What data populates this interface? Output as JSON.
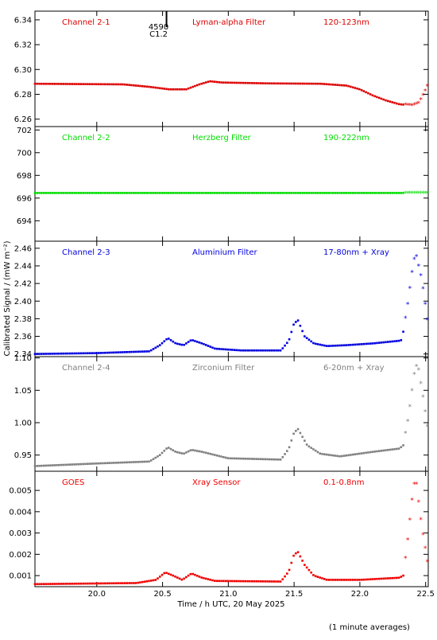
{
  "y_axis_label": "Calibrated Signal / (mW m⁻²)",
  "x_axis_label": "Time / h UTC, 20 May 2025",
  "footnote": "(1 minute averages)",
  "event_marker": {
    "x": 20.53,
    "top_label": "4590",
    "bottom_label": "C1.2"
  },
  "chart_data": [
    {
      "type": "scatter",
      "name": "Channel 2-1",
      "filter": "Lyman-alpha Filter",
      "band": "120-123nm",
      "color": "#dd0000",
      "xlim": [
        19.53,
        22.52
      ],
      "ylim": [
        6.254,
        6.347
      ],
      "yticks": [
        6.26,
        6.28,
        6.3,
        6.32,
        6.34
      ],
      "ytick_labels": [
        "6.26",
        "6.28",
        "6.30",
        "6.32",
        "6.34"
      ],
      "keypoints": [
        [
          19.53,
          6.2885
        ],
        [
          20.2,
          6.288
        ],
        [
          20.4,
          6.286
        ],
        [
          20.55,
          6.284
        ],
        [
          20.68,
          6.284
        ],
        [
          20.78,
          6.288
        ],
        [
          20.86,
          6.2905
        ],
        [
          20.95,
          6.2895
        ],
        [
          21.3,
          6.2888
        ],
        [
          21.7,
          6.2885
        ],
        [
          21.9,
          6.287
        ],
        [
          22.0,
          6.284
        ],
        [
          22.1,
          6.279
        ],
        [
          22.2,
          6.275
        ],
        [
          22.3,
          6.272
        ],
        [
          22.4,
          6.271
        ],
        [
          22.45,
          6.273
        ],
        [
          22.52,
          6.288
        ]
      ]
    },
    {
      "type": "scatter",
      "name": "Channel 2-2",
      "filter": "Herzberg Filter",
      "band": "190-222nm",
      "color": "#00dd00",
      "xlim": [
        19.53,
        22.52
      ],
      "ylim": [
        692.2,
        702.3
      ],
      "yticks": [
        694,
        696,
        698,
        700,
        702
      ],
      "ytick_labels": [
        "694",
        "696",
        "698",
        "700",
        "702"
      ],
      "keypoints": [
        [
          19.53,
          696.45
        ],
        [
          22.52,
          696.45
        ]
      ]
    },
    {
      "type": "scatter",
      "name": "Channel 2-3",
      "filter": "Aluminium Filter",
      "band": "17-80nm + Xray",
      "color": "#0000dd",
      "xlim": [
        19.53,
        22.52
      ],
      "ylim": [
        2.337,
        2.468
      ],
      "yticks": [
        2.34,
        2.36,
        2.38,
        2.4,
        2.42,
        2.44,
        2.46
      ],
      "ytick_labels": [
        "2.34",
        "2.36",
        "2.38",
        "2.40",
        "2.42",
        "2.44",
        "2.46"
      ],
      "keypoints": [
        [
          19.53,
          2.34
        ],
        [
          20.0,
          2.341
        ],
        [
          20.4,
          2.343
        ],
        [
          20.48,
          2.35
        ],
        [
          20.54,
          2.358
        ],
        [
          20.6,
          2.352
        ],
        [
          20.66,
          2.35
        ],
        [
          20.72,
          2.356
        ],
        [
          20.8,
          2.352
        ],
        [
          20.9,
          2.346
        ],
        [
          21.1,
          2.344
        ],
        [
          21.4,
          2.344
        ],
        [
          21.46,
          2.355
        ],
        [
          21.5,
          2.375
        ],
        [
          21.53,
          2.378
        ],
        [
          21.58,
          2.36
        ],
        [
          21.65,
          2.352
        ],
        [
          21.75,
          2.349
        ],
        [
          21.9,
          2.35
        ],
        [
          22.1,
          2.352
        ],
        [
          22.3,
          2.355
        ],
        [
          22.32,
          2.356
        ],
        [
          22.36,
          2.393
        ],
        [
          22.41,
          2.447
        ],
        [
          22.43,
          2.451
        ],
        [
          22.47,
          2.425
        ],
        [
          22.52,
          2.372
        ]
      ]
    },
    {
      "type": "scatter",
      "name": "Channel 2-4",
      "filter": "Zirconium Filter",
      "band": "6-20nm + Xray",
      "color": "#808080",
      "xlim": [
        19.53,
        22.52
      ],
      "ylim": [
        0.925,
        1.102
      ],
      "yticks": [
        0.95,
        1.0,
        1.05,
        1.1
      ],
      "ytick_labels": [
        "0.95",
        "1.00",
        "1.05",
        "1.10"
      ],
      "keypoints": [
        [
          19.53,
          0.933
        ],
        [
          20.0,
          0.937
        ],
        [
          20.4,
          0.94
        ],
        [
          20.48,
          0.95
        ],
        [
          20.54,
          0.962
        ],
        [
          20.6,
          0.955
        ],
        [
          20.66,
          0.952
        ],
        [
          20.72,
          0.958
        ],
        [
          20.8,
          0.955
        ],
        [
          21.0,
          0.945
        ],
        [
          21.4,
          0.943
        ],
        [
          21.46,
          0.96
        ],
        [
          21.5,
          0.985
        ],
        [
          21.53,
          0.99
        ],
        [
          21.6,
          0.965
        ],
        [
          21.7,
          0.952
        ],
        [
          21.85,
          0.948
        ],
        [
          22.1,
          0.955
        ],
        [
          22.3,
          0.96
        ],
        [
          22.33,
          0.965
        ],
        [
          22.37,
          1.01
        ],
        [
          22.42,
          1.085
        ],
        [
          22.44,
          1.09
        ],
        [
          22.48,
          1.04
        ],
        [
          22.52,
          0.985
        ]
      ]
    },
    {
      "type": "scatter",
      "name": "GOES",
      "filter": "Xray Sensor",
      "band": "0.1-0.8nm",
      "color": "#ee0000",
      "xlim": [
        19.53,
        22.52
      ],
      "ylim": [
        0.00048,
        0.0059
      ],
      "yticks": [
        0.001,
        0.002,
        0.003,
        0.004,
        0.005
      ],
      "ytick_labels": [
        "0.001",
        "0.002",
        "0.003",
        "0.004",
        "0.005"
      ],
      "xticks": [
        20.0,
        20.5,
        21.0,
        21.5,
        22.0,
        22.5
      ],
      "xtick_labels": [
        "20.0",
        "20.5",
        "21.0",
        "21.5",
        "22.0",
        "22.5"
      ],
      "keypoints": [
        [
          19.53,
          0.0006
        ],
        [
          20.3,
          0.00065
        ],
        [
          20.45,
          0.0008
        ],
        [
          20.52,
          0.00115
        ],
        [
          20.58,
          0.001
        ],
        [
          20.65,
          0.0008
        ],
        [
          20.72,
          0.0011
        ],
        [
          20.8,
          0.0009
        ],
        [
          20.9,
          0.00075
        ],
        [
          21.4,
          0.00072
        ],
        [
          21.46,
          0.0012
        ],
        [
          21.5,
          0.002
        ],
        [
          21.53,
          0.0021
        ],
        [
          21.58,
          0.0015
        ],
        [
          21.65,
          0.001
        ],
        [
          21.75,
          0.0008
        ],
        [
          22.0,
          0.0008
        ],
        [
          22.3,
          0.0009
        ],
        [
          22.33,
          0.001
        ],
        [
          22.36,
          0.0025
        ],
        [
          22.41,
          0.0053
        ],
        [
          22.43,
          0.0053
        ],
        [
          22.47,
          0.0033
        ],
        [
          22.52,
          0.0014
        ]
      ]
    }
  ]
}
